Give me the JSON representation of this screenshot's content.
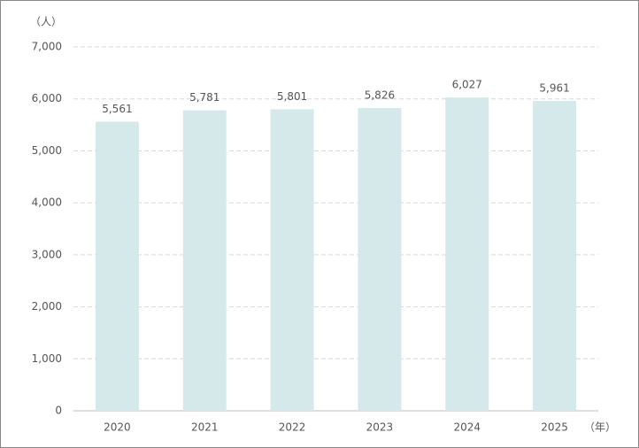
{
  "chart_data": {
    "type": "bar",
    "y_unit_label": "（人）",
    "x_unit_label": "（年）",
    "categories": [
      "2020",
      "2021",
      "2022",
      "2023",
      "2024",
      "2025"
    ],
    "values": [
      5561,
      5781,
      5801,
      5826,
      6027,
      5961
    ],
    "value_labels": [
      "5,561",
      "5,781",
      "5,801",
      "5,826",
      "6,027",
      "5,961"
    ],
    "color": "#d5e8ea",
    "ylim": [
      0,
      7000
    ],
    "yticks": [
      0,
      {
        "value": 1000,
        "label": "1,000"
      },
      {
        "value": 2000,
        "label": "2,000"
      },
      {
        "value": 3000,
        "label": "3,000"
      },
      {
        "value": 4000,
        "label": "4,000"
      },
      {
        "value": 5000,
        "label": "5,000"
      },
      {
        "value": 6000,
        "label": "6,000"
      },
      {
        "value": 7000,
        "label": "7,000"
      }
    ],
    "grid": true
  }
}
